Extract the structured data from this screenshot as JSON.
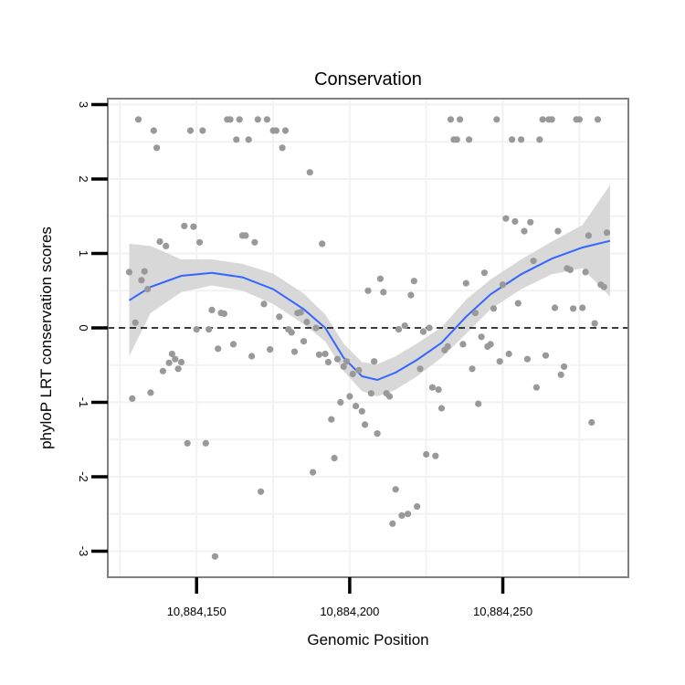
{
  "chart_data": {
    "type": "scatter",
    "title": "Conservation",
    "xlabel": "Genomic Position",
    "ylabel": "phyloP LRT conservation scores",
    "xlim": [
      10884121,
      10884291
    ],
    "ylim": [
      -3.35,
      3.08
    ],
    "x_ticks": [
      {
        "value": 10884150,
        "label": "10,884,150"
      },
      {
        "value": 10884200,
        "label": "10,884,200"
      },
      {
        "value": 10884250,
        "label": "10,884,250"
      }
    ],
    "x_minor_ticks": [
      10884125,
      10884175,
      10884225,
      10884275
    ],
    "y_ticks": [
      {
        "value": 3,
        "label": "3"
      },
      {
        "value": 2,
        "label": "2"
      },
      {
        "value": 1,
        "label": "1"
      },
      {
        "value": 0,
        "label": "0"
      },
      {
        "value": -1,
        "label": "-1"
      },
      {
        "value": -2,
        "label": "-2"
      },
      {
        "value": -3,
        "label": "-3"
      }
    ],
    "reference_line": {
      "y": 0,
      "style": "dashed"
    },
    "grid": true,
    "colors": {
      "points": "#999999",
      "smooth": "#3366ff",
      "ribbon": "#d4d4d4",
      "panel_border": "#7f7f7f",
      "grid": "#f2f2f2",
      "reference": "#000000"
    },
    "series": [
      {
        "name": "scores",
        "points": [
          [
            10884128,
            0.75
          ],
          [
            10884129,
            -0.95
          ],
          [
            10884130,
            0.07
          ],
          [
            10884131,
            2.8
          ],
          [
            10884132,
            0.64
          ],
          [
            10884133,
            0.76
          ],
          [
            10884134,
            0.52
          ],
          [
            10884135,
            -0.87
          ],
          [
            10884136,
            2.65
          ],
          [
            10884137,
            2.42
          ],
          [
            10884138,
            1.16
          ],
          [
            10884139,
            -0.58
          ],
          [
            10884140,
            1.1
          ],
          [
            10884141,
            -0.47
          ],
          [
            10884142,
            -0.35
          ],
          [
            10884143,
            -0.42
          ],
          [
            10884144,
            -0.55
          ],
          [
            10884145,
            -0.46
          ],
          [
            10884146,
            1.37
          ],
          [
            10884147,
            -1.55
          ],
          [
            10884148,
            2.65
          ],
          [
            10884149,
            1.36
          ],
          [
            10884150,
            -0.02
          ],
          [
            10884151,
            1.15
          ],
          [
            10884152,
            2.65
          ],
          [
            10884153,
            -1.55
          ],
          [
            10884154,
            -0.02
          ],
          [
            10884155,
            0.24
          ],
          [
            10884156,
            -3.07
          ],
          [
            10884157,
            -0.28
          ],
          [
            10884158,
            0.2
          ],
          [
            10884159,
            0.19
          ],
          [
            10884160,
            2.8
          ],
          [
            10884161,
            2.8
          ],
          [
            10884162,
            -0.22
          ],
          [
            10884163,
            2.53
          ],
          [
            10884164,
            2.8
          ],
          [
            10884165,
            1.24
          ],
          [
            10884166,
            1.24
          ],
          [
            10884167,
            2.53
          ],
          [
            10884168,
            -0.38
          ],
          [
            10884169,
            1.15
          ],
          [
            10884170,
            2.8
          ],
          [
            10884171,
            -2.2
          ],
          [
            10884172,
            0.32
          ],
          [
            10884173,
            2.8
          ],
          [
            10884174,
            -0.29
          ],
          [
            10884175,
            2.65
          ],
          [
            10884176,
            2.65
          ],
          [
            10884177,
            0.15
          ],
          [
            10884178,
            2.42
          ],
          [
            10884179,
            2.65
          ],
          [
            10884180,
            -0.02
          ],
          [
            10884181,
            -0.06
          ],
          [
            10884182,
            -0.32
          ],
          [
            10884183,
            0.2
          ],
          [
            10884184,
            0.21
          ],
          [
            10884185,
            -0.18
          ],
          [
            10884186,
            0.08
          ],
          [
            10884187,
            2.09
          ],
          [
            10884188,
            -1.94
          ],
          [
            10884189,
            0.0
          ],
          [
            10884190,
            -0.36
          ],
          [
            10884191,
            1.13
          ],
          [
            10884192,
            -0.35
          ],
          [
            10884193,
            -0.46
          ],
          [
            10884194,
            -1.23
          ],
          [
            10884195,
            -1.75
          ],
          [
            10884196,
            -0.42
          ],
          [
            10884197,
            -1.0
          ],
          [
            10884198,
            -0.52
          ],
          [
            10884199,
            -0.45
          ],
          [
            10884200,
            -0.92
          ],
          [
            10884201,
            -0.62
          ],
          [
            10884202,
            -1.05
          ],
          [
            10884203,
            -0.57
          ],
          [
            10884204,
            -1.12
          ],
          [
            10884205,
            -1.3
          ],
          [
            10884206,
            0.5
          ],
          [
            10884207,
            -0.88
          ],
          [
            10884208,
            -0.45
          ],
          [
            10884209,
            -1.42
          ],
          [
            10884210,
            0.66
          ],
          [
            10884211,
            0.48
          ],
          [
            10884212,
            -0.88
          ],
          [
            10884213,
            -0.92
          ],
          [
            10884214,
            -2.63
          ],
          [
            10884215,
            -2.17
          ],
          [
            10884216,
            -0.02
          ],
          [
            10884217,
            -2.52
          ],
          [
            10884218,
            0.03
          ],
          [
            10884219,
            -2.5
          ],
          [
            10884220,
            0.44
          ],
          [
            10884221,
            0.63
          ],
          [
            10884222,
            -2.4
          ],
          [
            10884223,
            -0.55
          ],
          [
            10884224,
            -0.05
          ],
          [
            10884225,
            -1.7
          ],
          [
            10884226,
            0.0
          ],
          [
            10884227,
            -0.8
          ],
          [
            10884228,
            -1.72
          ],
          [
            10884229,
            -0.83
          ],
          [
            10884230,
            -1.08
          ],
          [
            10884231,
            -0.3
          ],
          [
            10884232,
            -0.25
          ],
          [
            10884233,
            2.8
          ],
          [
            10884234,
            2.53
          ],
          [
            10884235,
            2.53
          ],
          [
            10884236,
            2.8
          ],
          [
            10884237,
            -0.22
          ],
          [
            10884238,
            0.6
          ],
          [
            10884239,
            2.53
          ],
          [
            10884240,
            -0.55
          ],
          [
            10884241,
            0.2
          ],
          [
            10884242,
            -1.02
          ],
          [
            10884243,
            -0.12
          ],
          [
            10884244,
            0.74
          ],
          [
            10884245,
            -0.25
          ],
          [
            10884246,
            -0.22
          ],
          [
            10884247,
            0.26
          ],
          [
            10884248,
            2.8
          ],
          [
            10884249,
            -0.45
          ],
          [
            10884250,
            0.58
          ],
          [
            10884251,
            1.47
          ],
          [
            10884252,
            -0.35
          ],
          [
            10884253,
            2.53
          ],
          [
            10884254,
            1.43
          ],
          [
            10884255,
            0.33
          ],
          [
            10884256,
            2.53
          ],
          [
            10884257,
            1.3
          ],
          [
            10884258,
            -0.42
          ],
          [
            10884259,
            1.42
          ],
          [
            10884260,
            0.9
          ],
          [
            10884261,
            -0.8
          ],
          [
            10884262,
            2.53
          ],
          [
            10884263,
            2.8
          ],
          [
            10884264,
            -0.37
          ],
          [
            10884265,
            2.8
          ],
          [
            10884266,
            2.8
          ],
          [
            10884267,
            0.27
          ],
          [
            10884268,
            1.3
          ],
          [
            10884269,
            -0.63
          ],
          [
            10884270,
            -0.52
          ],
          [
            10884271,
            0.8
          ],
          [
            10884272,
            0.78
          ],
          [
            10884273,
            0.26
          ],
          [
            10884274,
            2.8
          ],
          [
            10884275,
            2.8
          ],
          [
            10884276,
            0.27
          ],
          [
            10884277,
            0.75
          ],
          [
            10884278,
            1.24
          ],
          [
            10884279,
            -1.27
          ],
          [
            10884280,
            0.06
          ],
          [
            10884281,
            2.8
          ],
          [
            10884282,
            0.58
          ],
          [
            10884283,
            0.55
          ],
          [
            10884284,
            1.28
          ]
        ]
      }
    ],
    "smooth": {
      "name": "loess fit",
      "x": [
        10884128,
        10884135,
        10884145,
        10884155,
        10884165,
        10884175,
        10884185,
        10884192,
        10884198,
        10884204,
        10884209,
        10884215,
        10884222,
        10884230,
        10884238,
        10884246,
        10884256,
        10884266,
        10884276,
        10884285
      ],
      "y": [
        0.37,
        0.55,
        0.7,
        0.74,
        0.68,
        0.52,
        0.25,
        0.0,
        -0.4,
        -0.65,
        -0.7,
        -0.6,
        -0.43,
        -0.2,
        0.15,
        0.45,
        0.72,
        0.93,
        1.08,
        1.17
      ],
      "lower": [
        -0.38,
        0.2,
        0.48,
        0.57,
        0.5,
        0.32,
        0.05,
        -0.18,
        -0.58,
        -0.85,
        -0.92,
        -0.83,
        -0.65,
        -0.4,
        -0.08,
        0.25,
        0.52,
        0.72,
        0.8,
        0.42
      ],
      "upper": [
        1.13,
        1.1,
        0.92,
        0.92,
        0.86,
        0.73,
        0.46,
        0.18,
        -0.21,
        -0.46,
        -0.49,
        -0.38,
        -0.21,
        0.01,
        0.38,
        0.65,
        0.92,
        1.16,
        1.38,
        1.92
      ]
    }
  }
}
